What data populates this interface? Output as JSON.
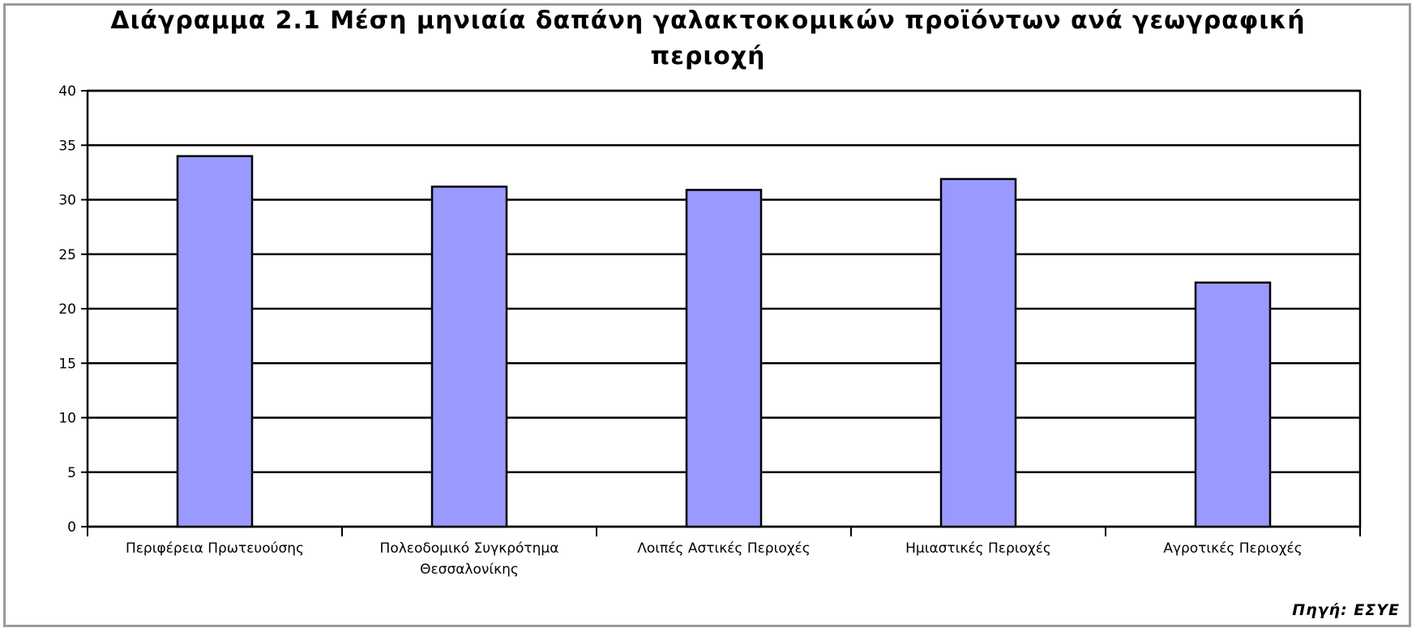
{
  "chart_data": {
    "type": "bar",
    "title_line1": "Διάγραμμα 2.1 Μέση μηνιαία δαπάνη γαλακτοκομικών προϊόντων ανά γεωγραφική",
    "title_line2": "περιοχή",
    "categories": [
      [
        "Περιφέρεια Πρωτευούσης"
      ],
      [
        "Πολεοδομικό Συγκρότημα",
        "Θεσσαλονίκης"
      ],
      [
        "Λοιπές Αστικές Περιοχές"
      ],
      [
        "Ημιαστικές Περιοχές"
      ],
      [
        "Αγροτικές Περιοχές"
      ]
    ],
    "values": [
      34.0,
      31.2,
      30.9,
      31.9,
      22.4
    ],
    "ylim": [
      0,
      40
    ],
    "yticks": [
      0,
      5,
      10,
      15,
      20,
      25,
      30,
      35,
      40
    ],
    "grid": true,
    "legend": "none",
    "bar_color": "#9999ff",
    "source": "Πηγή: ΕΣΥΕ"
  }
}
